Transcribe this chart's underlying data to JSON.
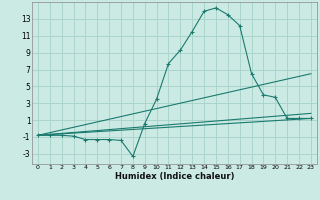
{
  "xlabel": "Humidex (Indice chaleur)",
  "background_color": "#cceae4",
  "grid_color": "#aad4cc",
  "line_color": "#1a7a6e",
  "xlim": [
    -0.5,
    23.5
  ],
  "ylim": [
    -4.2,
    15.0
  ],
  "yticks": [
    -3,
    -1,
    1,
    3,
    5,
    7,
    9,
    11,
    13
  ],
  "xticks": [
    0,
    1,
    2,
    3,
    4,
    5,
    6,
    7,
    8,
    9,
    10,
    11,
    12,
    13,
    14,
    15,
    16,
    17,
    18,
    19,
    20,
    21,
    22,
    23
  ],
  "series": [
    {
      "x": [
        0,
        1,
        2,
        3,
        4,
        5,
        6,
        7,
        8,
        9,
        10,
        11,
        12,
        13,
        14,
        15,
        16,
        17,
        18,
        19,
        20,
        21,
        22,
        23
      ],
      "y": [
        -0.8,
        -0.8,
        -0.8,
        -0.9,
        -1.3,
        -1.3,
        -1.3,
        -1.4,
        -3.3,
        0.6,
        3.5,
        7.7,
        9.3,
        11.5,
        13.9,
        14.3,
        13.5,
        12.2,
        6.5,
        4.0,
        3.7,
        1.2,
        1.2,
        1.2
      ],
      "marker": "+"
    },
    {
      "x": [
        0,
        23
      ],
      "y": [
        -0.8,
        6.5
      ],
      "marker": null
    },
    {
      "x": [
        0,
        23
      ],
      "y": [
        -0.8,
        1.8
      ],
      "marker": null
    },
    {
      "x": [
        0,
        23
      ],
      "y": [
        -0.8,
        1.2
      ],
      "marker": null
    }
  ]
}
